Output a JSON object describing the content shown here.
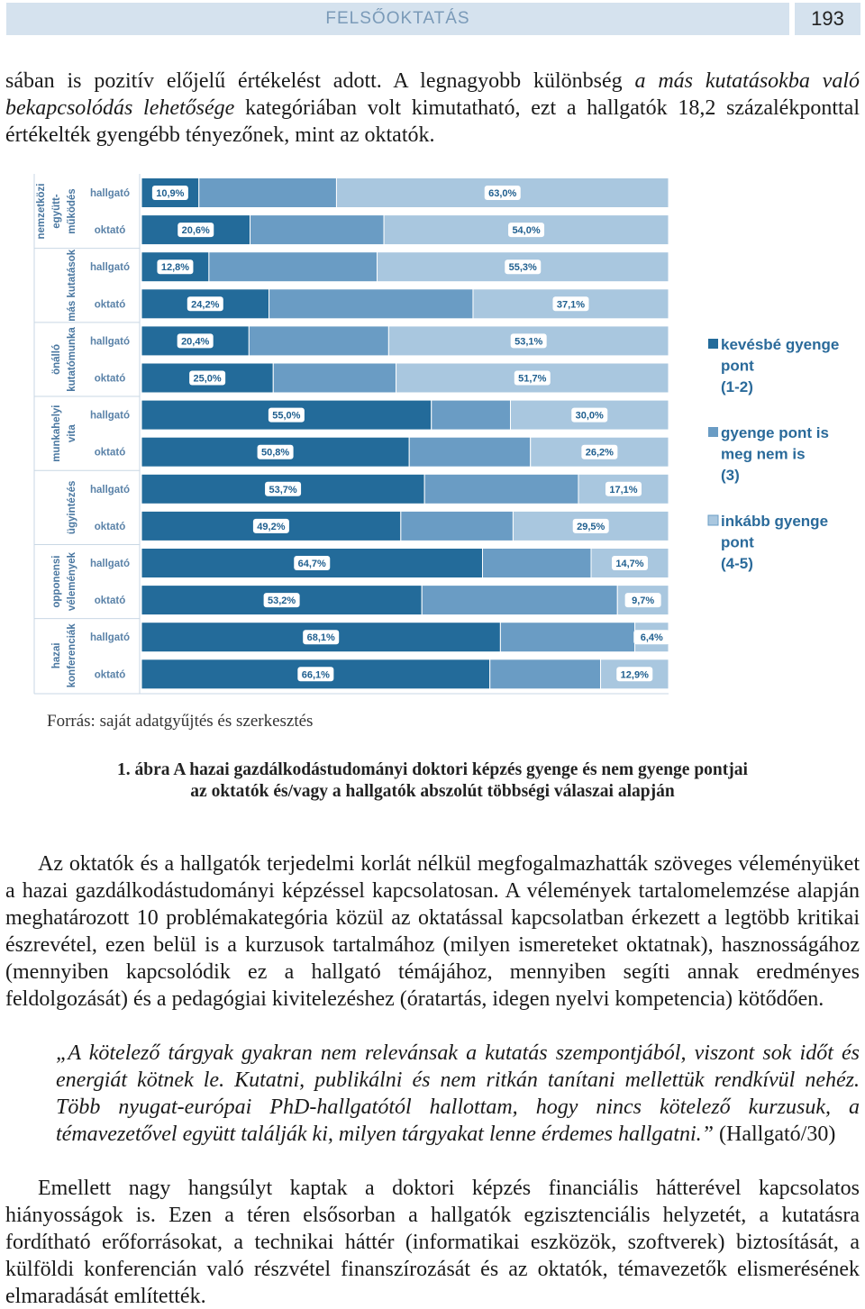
{
  "header": {
    "title": "FELSŐOKTATÁS",
    "page": "193"
  },
  "paragraphs": [
    [
      "sában is pozitív előjelű értékelést adott. A legnagyobb különbség ",
      "a más kutatásokba való bekapcsolódás lehetősége",
      " kategóriában volt kimutatható, ezt a hallgatók 18,2 százalékponttal értékelték gyengébb tényezőnek, mint az oktatók."
    ],
    [
      "Az oktatók és a hallgatók terjedelmi korlát nélkül megfogalmazhatták szöveges véleményüket a hazai gazdálkodástudományi képzéssel kapcsolatosan. A vélemények tartalomelemzése alapján meghatározott 10 problémakategória közül az oktatással kapcsolatban érkezett a legtöbb kritikai észrevétel, ezen belül is a kurzusok tartalmához (milyen ismereteket oktatnak), hasznosságához (mennyiben kapcsolódik ez a hallgató témájához, mennyiben segíti annak eredményes feldolgozását) és a pedagógiai kivitelezéshez (óratartás, idegen nyelvi kompetencia) kötődően."
    ],
    [
      "„A kötelező tárgyak gyakran nem relevánsak a kutatás szempontjából, viszont sok időt és energiát kötnek le. Kutatni, publikálni és nem ritkán tanítani mellettük rendkívül nehéz. Több nyugat-európai PhD-hallgatótól hallottam, hogy nincs kötelező kurzusuk, a témavezetővel együtt találják ki, milyen tárgyakat lenne érdemes hallgatni.”",
      " (Hallgató/30)"
    ],
    [
      "Emellett nagy hangsúlyt kaptak a doktori képzés financiális hátterével kapcsolatos hiányosságok is. Ezen a téren elsősorban a hallgatók egzisztenciális helyzetét, a kutatásra fordítható erőforrásokat, a technikai háttér (informatikai eszközök, szoftverek) biztosítását, a külföldi konferencián való részvétel finanszírozását és az oktatók, témavezetők elismerésének elmaradását említették."
    ]
  ],
  "source": "Forrás: saját adatgyűjtés és szerkesztés",
  "caption": "1. ábra A hazai gazdálkodástudományi doktori képzés gyenge és nem gyenge pontjai az oktatók és/vagy a hallgatók abszolút többségi válaszai alapján",
  "chart_data": {
    "type": "bar",
    "orientation": "horizontal",
    "stacked": true,
    "groups": [
      [
        "nemzetközi",
        "együtt-",
        "működés"
      ],
      [
        "más kutatások"
      ],
      [
        "önálló",
        "kutatómunka"
      ],
      [
        "munkahelyi",
        "vita"
      ],
      [
        "ügyintézés"
      ],
      [
        "opponensi",
        "vélemények"
      ],
      [
        "hazai",
        "konferenciák"
      ]
    ],
    "categories": [
      "hallgató",
      "oktató",
      "hallgató",
      "oktató",
      "hallgató",
      "oktató",
      "hallgató",
      "oktató",
      "hallgató",
      "oktató",
      "hallgató",
      "oktató",
      "hallgató",
      "oktató"
    ],
    "series": [
      {
        "name": "kevésbé gyenge pont (1-2)",
        "color": "#236b9a",
        "values": [
          10.9,
          20.6,
          12.8,
          24.2,
          20.4,
          25.0,
          55.0,
          50.8,
          53.7,
          49.2,
          64.7,
          53.2,
          68.1,
          66.1
        ],
        "value_labels": [
          "10,9%",
          "20,6%",
          "12,8%",
          "24,2%",
          "20,4%",
          "25,0%",
          "55,0%",
          "50,8%",
          "53,7%",
          "49,2%",
          "64,7%",
          "53,2%",
          "68,1%",
          "66,1%"
        ]
      },
      {
        "name": "gyenge pont is meg nem is (3)",
        "color": "#6a9cc4",
        "values": [
          26.1,
          25.4,
          31.9,
          38.7,
          26.5,
          23.3,
          15.0,
          23.0,
          29.2,
          21.3,
          20.6,
          37.1,
          25.5,
          21.0
        ]
      },
      {
        "name": "inkább gyenge pont (4-5)",
        "color": "#a9c7df",
        "values": [
          63.0,
          54.0,
          55.3,
          37.1,
          53.1,
          51.7,
          30.0,
          26.2,
          17.1,
          29.5,
          14.7,
          9.7,
          6.4,
          12.9
        ],
        "value_labels": [
          "63,0%",
          "54,0%",
          "55,3%",
          "37,1%",
          "53,1%",
          "51,7%",
          "30,0%",
          "26,2%",
          "17,1%",
          "29,5%",
          "14,7%",
          "9,7%",
          "6,4%",
          "12,9%"
        ]
      }
    ]
  }
}
